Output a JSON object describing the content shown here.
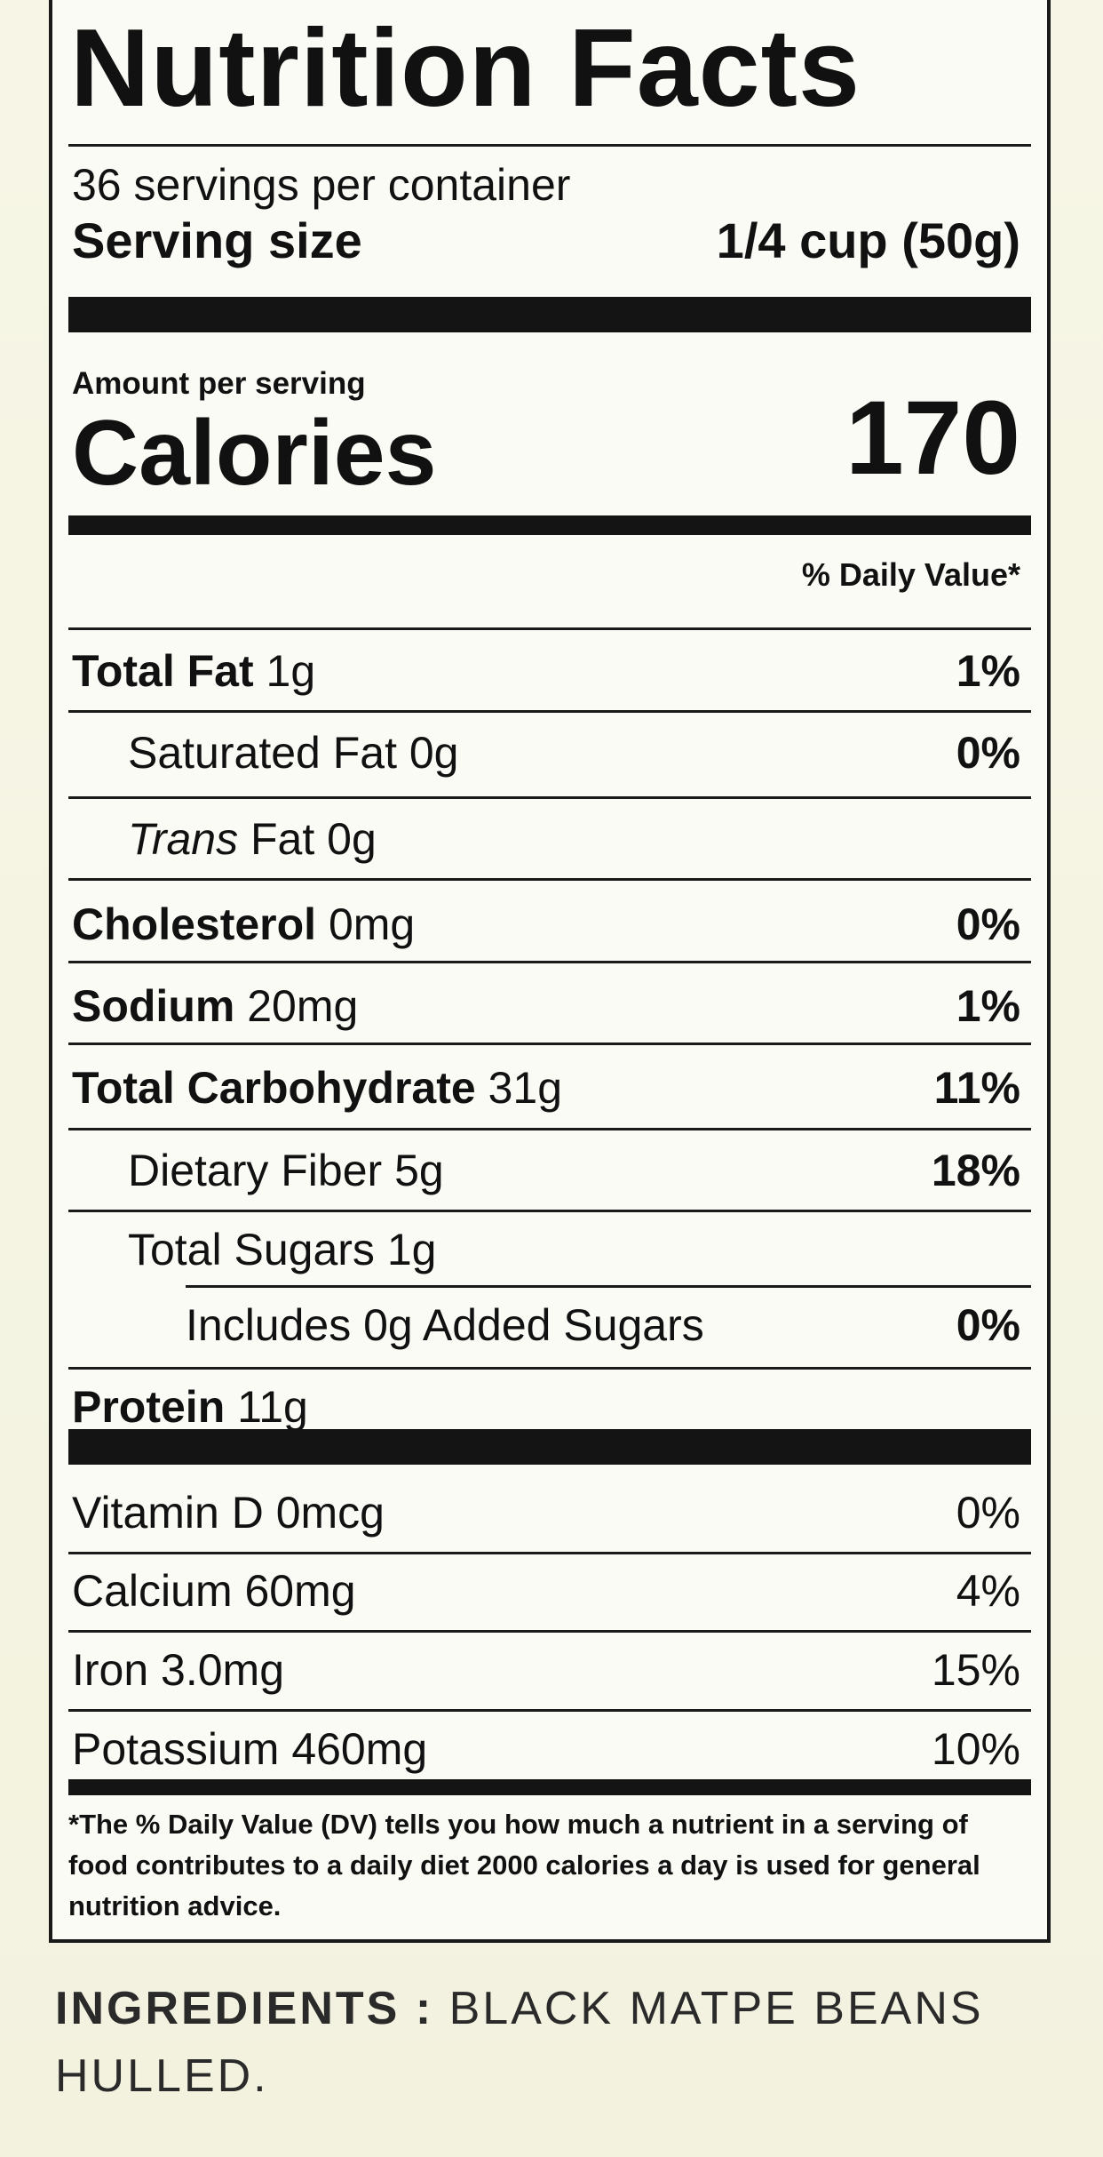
{
  "label": {
    "title": "Nutrition Facts",
    "servings_per_container": "36 servings per container",
    "serving_size": {
      "label": "Serving size",
      "value": "1/4 cup (50g)"
    },
    "amount_per_serving": "Amount per serving",
    "calories": {
      "label": "Calories",
      "value": "170"
    },
    "daily_value_header": "% Daily Value*",
    "nutrients": [
      {
        "name": "Total Fat",
        "amount": "1g",
        "dv": "1%"
      },
      {
        "name": "Saturated Fat",
        "amount": "0g",
        "dv": "0%"
      },
      {
        "name_italic": "Trans",
        "name": "Fat",
        "amount": "0g"
      },
      {
        "name": "Cholesterol",
        "amount": "0mg",
        "dv": "0%"
      },
      {
        "name": "Sodium",
        "amount": "20mg",
        "dv": "1%"
      },
      {
        "name": "Total Carbohydrate",
        "amount": "31g",
        "dv": "11%"
      },
      {
        "name": "Dietary Fiber",
        "amount": "5g",
        "dv": "18%"
      },
      {
        "name": "Total Sugars",
        "amount": "1g"
      },
      {
        "name": "Includes 0g Added Sugars",
        "dv": "0%"
      },
      {
        "name": "Protein",
        "amount": "11g"
      }
    ],
    "vitamins": [
      {
        "name": "Vitamin D 0mcg",
        "dv": "0%"
      },
      {
        "name": "Calcium 60mg",
        "dv": "4%"
      },
      {
        "name": "Iron 3.0mg",
        "dv": "15%"
      },
      {
        "name": "Potassium 460mg",
        "dv": "10%"
      }
    ],
    "footnote": "*The % Daily Value (DV) tells you how much a nutrient in a serving of food contributes to a daily diet 2000 calories a day is used for general nutrition advice."
  },
  "ingredients": {
    "label": "INGREDIENTS :",
    "text": "BLACK MATPE BEANS HULLED."
  }
}
